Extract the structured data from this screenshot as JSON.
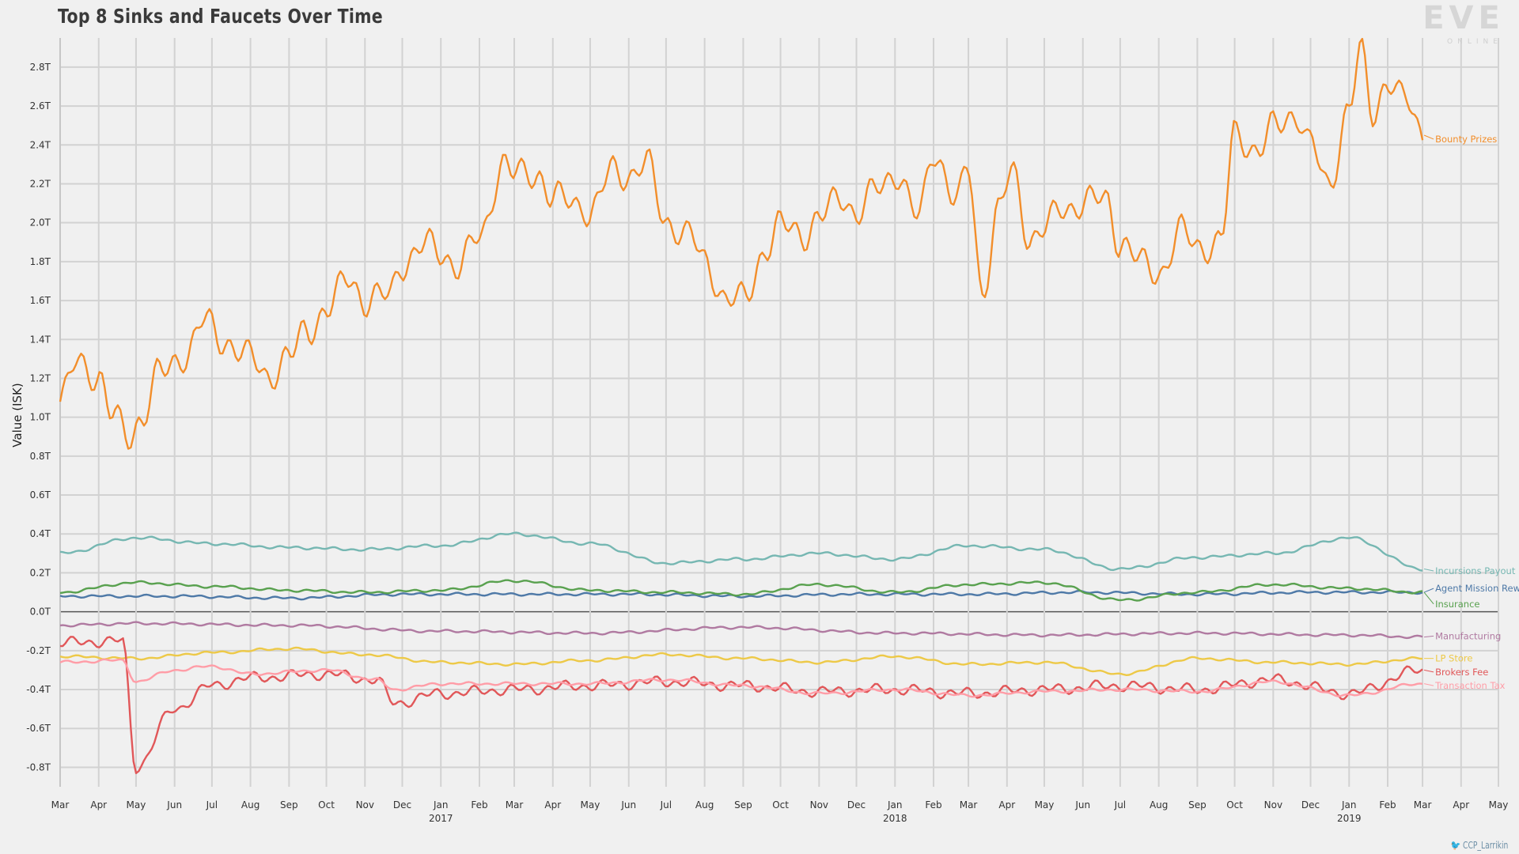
{
  "title": "Top 8 Sinks and Faucets Over Time",
  "logo": {
    "main": "EVE",
    "sub": "ONLINE"
  },
  "credit": "CCP_Larrikin",
  "chart_data": {
    "type": "line",
    "title": "Top 8 Sinks and Faucets Over Time",
    "ylabel": "Value (ISK)",
    "xlabel": "",
    "ylim": [
      -0.9,
      2.95
    ],
    "y_unit": "trillion ISK",
    "y_ticks": [
      -0.8,
      -0.6,
      -0.4,
      -0.2,
      0.0,
      0.2,
      0.4,
      0.6,
      0.8,
      1.0,
      1.2,
      1.4,
      1.6,
      1.8,
      2.0,
      2.2,
      2.4,
      2.6,
      2.8
    ],
    "y_tick_labels": [
      "-0.8T",
      "-0.6T",
      "-0.4T",
      "-0.2T",
      "0.0T",
      "0.2T",
      "0.4T",
      "0.6T",
      "0.8T",
      "1.0T",
      "1.2T",
      "1.4T",
      "1.6T",
      "1.8T",
      "2.0T",
      "2.2T",
      "2.4T",
      "2.6T",
      "2.8T"
    ],
    "x_range": [
      "2016-03-01",
      "2019-05-01"
    ],
    "x_ticks": [
      {
        "date": "2016-03-01",
        "label": "Mar"
      },
      {
        "date": "2016-04-01",
        "label": "Apr"
      },
      {
        "date": "2016-05-01",
        "label": "May"
      },
      {
        "date": "2016-06-01",
        "label": "Jun"
      },
      {
        "date": "2016-07-01",
        "label": "Jul"
      },
      {
        "date": "2016-08-01",
        "label": "Aug"
      },
      {
        "date": "2016-09-01",
        "label": "Sep"
      },
      {
        "date": "2016-10-01",
        "label": "Oct"
      },
      {
        "date": "2016-11-01",
        "label": "Nov"
      },
      {
        "date": "2016-12-01",
        "label": "Dec"
      },
      {
        "date": "2017-01-01",
        "label": "Jan",
        "year": "2017"
      },
      {
        "date": "2017-02-01",
        "label": "Feb"
      },
      {
        "date": "2017-03-01",
        "label": "Mar"
      },
      {
        "date": "2017-04-01",
        "label": "Apr"
      },
      {
        "date": "2017-05-01",
        "label": "May"
      },
      {
        "date": "2017-06-01",
        "label": "Jun"
      },
      {
        "date": "2017-07-01",
        "label": "Jul"
      },
      {
        "date": "2017-08-01",
        "label": "Aug"
      },
      {
        "date": "2017-09-01",
        "label": "Sep"
      },
      {
        "date": "2017-10-01",
        "label": "Oct"
      },
      {
        "date": "2017-11-01",
        "label": "Nov"
      },
      {
        "date": "2017-12-01",
        "label": "Dec"
      },
      {
        "date": "2018-01-01",
        "label": "Jan",
        "year": "2018"
      },
      {
        "date": "2018-02-01",
        "label": "Feb"
      },
      {
        "date": "2018-03-01",
        "label": "Mar"
      },
      {
        "date": "2018-04-01",
        "label": "Apr"
      },
      {
        "date": "2018-05-01",
        "label": "May"
      },
      {
        "date": "2018-06-01",
        "label": "Jun"
      },
      {
        "date": "2018-07-01",
        "label": "Jul"
      },
      {
        "date": "2018-08-01",
        "label": "Aug"
      },
      {
        "date": "2018-09-01",
        "label": "Sep"
      },
      {
        "date": "2018-10-01",
        "label": "Oct"
      },
      {
        "date": "2018-11-01",
        "label": "Nov"
      },
      {
        "date": "2018-12-01",
        "label": "Dec"
      },
      {
        "date": "2019-01-01",
        "label": "Jan",
        "year": "2019"
      },
      {
        "date": "2019-02-01",
        "label": "Feb"
      },
      {
        "date": "2019-03-01",
        "label": "Mar"
      },
      {
        "date": "2019-04-01",
        "label": "Apr"
      },
      {
        "date": "2019-05-01",
        "label": "May"
      }
    ],
    "grid": true,
    "legend": "line-end labels at right",
    "series": [
      {
        "name": "Bounty Prizes",
        "color": "#f28e2b",
        "x": [
          "2016-03-01",
          "2016-03-15",
          "2016-04-01",
          "2016-04-12",
          "2016-04-25",
          "2016-05-05",
          "2016-05-20",
          "2016-06-10",
          "2016-06-25",
          "2016-07-10",
          "2016-08-01",
          "2016-08-15",
          "2016-09-01",
          "2016-09-15",
          "2016-10-01",
          "2016-10-20",
          "2016-11-01",
          "2016-11-20",
          "2016-12-01",
          "2016-12-20",
          "2017-01-01",
          "2017-01-15",
          "2017-02-01",
          "2017-02-20",
          "2017-03-01",
          "2017-03-20",
          "2017-04-01",
          "2017-04-25",
          "2017-05-01",
          "2017-05-20",
          "2017-06-01",
          "2017-06-15",
          "2017-07-01",
          "2017-07-20",
          "2017-08-01",
          "2017-08-20",
          "2017-09-01",
          "2017-09-20",
          "2017-10-01",
          "2017-10-20",
          "2017-11-01",
          "2017-11-20",
          "2017-12-01",
          "2017-12-20",
          "2018-01-01",
          "2018-01-20",
          "2018-02-01",
          "2018-02-20",
          "2018-03-01",
          "2018-03-12",
          "2018-03-25",
          "2018-04-05",
          "2018-04-20",
          "2018-05-01",
          "2018-05-15",
          "2018-06-01",
          "2018-06-20",
          "2018-07-01",
          "2018-07-20",
          "2018-08-01",
          "2018-08-20",
          "2018-09-01",
          "2018-09-20",
          "2018-10-01",
          "2018-10-20",
          "2018-11-01",
          "2018-11-20",
          "2018-12-01",
          "2018-12-15",
          "2019-01-01",
          "2019-01-10",
          "2019-01-20",
          "2019-02-01",
          "2019-02-15",
          "2019-03-01"
        ],
        "y": [
          1.08,
          1.28,
          1.22,
          1.0,
          0.9,
          1.0,
          1.22,
          1.33,
          1.49,
          1.4,
          1.3,
          1.22,
          1.3,
          1.45,
          1.55,
          1.72,
          1.6,
          1.62,
          1.8,
          1.88,
          1.85,
          1.78,
          1.92,
          2.31,
          2.24,
          2.26,
          2.12,
          2.1,
          2.05,
          2.27,
          2.25,
          2.3,
          2.01,
          1.93,
          1.8,
          1.6,
          1.6,
          1.88,
          1.98,
          1.95,
          2.02,
          2.14,
          2.05,
          2.18,
          2.27,
          2.02,
          2.38,
          2.1,
          2.28,
          1.65,
          2.05,
          2.26,
          1.92,
          1.96,
          2.08,
          2.1,
          2.12,
          1.9,
          1.78,
          1.75,
          1.95,
          1.88,
          1.9,
          2.45,
          2.38,
          2.48,
          2.57,
          2.4,
          2.18,
          2.6,
          2.87,
          2.55,
          2.75,
          2.62,
          2.45
        ]
      },
      {
        "name": "Incursions Payout",
        "color": "#76b7b2",
        "x": [
          "2016-03-01",
          "2016-05-01",
          "2016-07-01",
          "2016-09-01",
          "2016-11-01",
          "2017-01-01",
          "2017-03-01",
          "2017-05-01",
          "2017-07-01",
          "2017-09-01",
          "2017-11-01",
          "2018-01-01",
          "2018-03-01",
          "2018-05-01",
          "2018-07-01",
          "2018-09-01",
          "2018-11-01",
          "2019-01-01",
          "2019-03-01"
        ],
        "y": [
          0.3,
          0.38,
          0.35,
          0.33,
          0.32,
          0.34,
          0.4,
          0.35,
          0.25,
          0.27,
          0.3,
          0.27,
          0.34,
          0.32,
          0.22,
          0.28,
          0.3,
          0.38,
          0.22
        ]
      },
      {
        "name": "Agent Mission Rewards",
        "color": "#4e79a7",
        "x": [
          "2016-03-01",
          "2016-06-01",
          "2016-09-01",
          "2016-12-01",
          "2017-03-01",
          "2017-06-01",
          "2017-09-01",
          "2017-12-01",
          "2018-03-01",
          "2018-06-01",
          "2018-09-01",
          "2018-12-01",
          "2019-03-01"
        ],
        "y": [
          0.08,
          0.08,
          0.07,
          0.09,
          0.09,
          0.09,
          0.08,
          0.09,
          0.09,
          0.1,
          0.09,
          0.1,
          0.1
        ]
      },
      {
        "name": "Insurance",
        "color": "#59a14f",
        "x": [
          "2016-03-01",
          "2016-05-01",
          "2016-07-01",
          "2016-09-01",
          "2016-11-01",
          "2017-01-01",
          "2017-03-01",
          "2017-05-01",
          "2017-07-01",
          "2017-09-01",
          "2017-11-01",
          "2018-01-01",
          "2018-03-01",
          "2018-05-01",
          "2018-07-01",
          "2018-09-01",
          "2018-11-01",
          "2019-01-01",
          "2019-03-01"
        ],
        "y": [
          0.1,
          0.15,
          0.13,
          0.11,
          0.1,
          0.11,
          0.16,
          0.11,
          0.1,
          0.09,
          0.14,
          0.1,
          0.14,
          0.15,
          0.06,
          0.1,
          0.14,
          0.12,
          0.1
        ]
      },
      {
        "name": "Manufacturing",
        "color": "#b07aa1",
        "x": [
          "2016-03-01",
          "2016-05-01",
          "2016-09-01",
          "2017-01-01",
          "2017-05-01",
          "2017-09-01",
          "2018-01-01",
          "2018-05-01",
          "2018-09-01",
          "2019-01-01",
          "2019-03-01"
        ],
        "y": [
          -0.07,
          -0.06,
          -0.07,
          -0.1,
          -0.11,
          -0.08,
          -0.11,
          -0.12,
          -0.11,
          -0.12,
          -0.13
        ]
      },
      {
        "name": "LP Store",
        "color": "#edc948",
        "x": [
          "2016-03-01",
          "2016-05-01",
          "2016-07-01",
          "2016-09-01",
          "2016-11-01",
          "2017-01-01",
          "2017-03-01",
          "2017-05-01",
          "2017-07-01",
          "2017-09-01",
          "2017-11-01",
          "2018-01-01",
          "2018-03-01",
          "2018-05-01",
          "2018-07-01",
          "2018-09-01",
          "2018-11-01",
          "2019-01-01",
          "2019-03-01"
        ],
        "y": [
          -0.23,
          -0.24,
          -0.21,
          -0.19,
          -0.22,
          -0.26,
          -0.27,
          -0.25,
          -0.22,
          -0.24,
          -0.26,
          -0.23,
          -0.27,
          -0.26,
          -0.32,
          -0.24,
          -0.26,
          -0.27,
          -0.24
        ]
      },
      {
        "name": "Brokers Fee",
        "color": "#e15759",
        "x": [
          "2016-03-01",
          "2016-04-20",
          "2016-05-01",
          "2016-06-01",
          "2016-07-01",
          "2016-08-01",
          "2016-10-01",
          "2016-11-10",
          "2016-11-25",
          "2017-01-01",
          "2017-03-01",
          "2017-05-01",
          "2017-07-01",
          "2017-09-01",
          "2017-11-01",
          "2018-01-01",
          "2018-03-01",
          "2018-05-01",
          "2018-07-01",
          "2018-09-01",
          "2018-11-01",
          "2019-01-01",
          "2019-03-01"
        ],
        "y": [
          -0.16,
          -0.15,
          -0.8,
          -0.5,
          -0.38,
          -0.34,
          -0.32,
          -0.35,
          -0.47,
          -0.42,
          -0.4,
          -0.38,
          -0.36,
          -0.38,
          -0.41,
          -0.4,
          -0.42,
          -0.4,
          -0.38,
          -0.4,
          -0.35,
          -0.42,
          -0.3
        ]
      },
      {
        "name": "Transaction Tax",
        "color": "#ff9da7",
        "x": [
          "2016-03-01",
          "2016-04-20",
          "2016-05-01",
          "2016-06-01",
          "2016-07-01",
          "2016-08-01",
          "2016-10-01",
          "2016-11-10",
          "2016-11-25",
          "2017-01-01",
          "2017-03-01",
          "2017-05-01",
          "2017-07-01",
          "2017-09-01",
          "2017-11-01",
          "2018-01-01",
          "2018-03-01",
          "2018-05-01",
          "2018-07-01",
          "2018-09-01",
          "2018-11-01",
          "2019-01-01",
          "2019-03-01"
        ],
        "y": [
          -0.26,
          -0.25,
          -0.36,
          -0.3,
          -0.28,
          -0.32,
          -0.3,
          -0.35,
          -0.4,
          -0.37,
          -0.37,
          -0.37,
          -0.35,
          -0.38,
          -0.42,
          -0.4,
          -0.43,
          -0.41,
          -0.4,
          -0.41,
          -0.36,
          -0.43,
          -0.37
        ]
      }
    ]
  }
}
